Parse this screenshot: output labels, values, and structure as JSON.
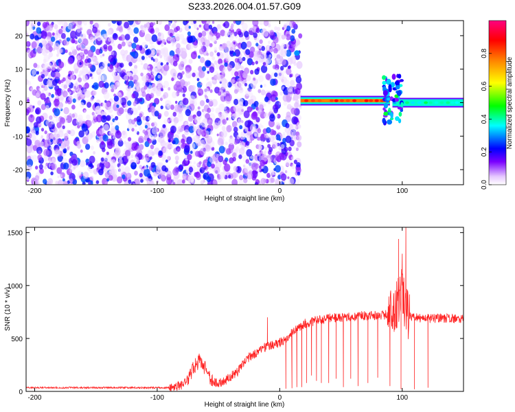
{
  "title": "S233.2026.004.01.57.G09",
  "chart_data": [
    {
      "type": "heatmap",
      "xlabel": "Height of straight line (km)",
      "ylabel": "Frequency (Hz)",
      "xlim": [
        -207,
        150
      ],
      "ylim": [
        -24.5,
        24.5
      ],
      "xticks": [
        -200,
        -100,
        0,
        100
      ],
      "yticks": [
        -20,
        -10,
        0,
        10,
        20
      ],
      "colorbar": {
        "label": "Normalized spectral amplitude",
        "range": [
          0,
          1
        ],
        "ticks": [
          0.0,
          0.2,
          0.4,
          0.6,
          0.8
        ],
        "colors": [
          "#eed6ff",
          "#7a00ff",
          "#0000ff",
          "#00ffff",
          "#00ff00",
          "#ffff00",
          "#ff8000",
          "#ff0000",
          "#ff0080"
        ]
      },
      "features": {
        "noise_region_x": [
          -207,
          17
        ],
        "noise_mean_amplitude": 0.12,
        "carrier_segments": [
          {
            "x": [
              17,
              90
            ],
            "frequency": 0.6,
            "amplitude": 0.9
          },
          {
            "x": [
              92,
              150
            ],
            "frequency": 0.0,
            "amplitude": 0.45
          }
        ],
        "bright_spot": {
          "x": 14,
          "frequency": 14.8,
          "amplitude": 0.3
        },
        "transition": {
          "x": [
            85,
            100
          ],
          "frequency_range": [
            -6,
            8
          ],
          "amplitude": 0.35
        }
      }
    },
    {
      "type": "line",
      "xlabel": "Height of straight line (km)",
      "ylabel": "SNR (10 * v/v)",
      "xlim": [
        -207,
        150
      ],
      "ylim": [
        0,
        1550
      ],
      "xticks": [
        -200,
        -100,
        0,
        100
      ],
      "yticks": [
        0,
        500,
        1000,
        1500
      ],
      "color": "#ff0000",
      "envelope": {
        "x": [
          -207,
          -90,
          -80,
          -75,
          -70,
          -65,
          -60,
          -55,
          -50,
          -45,
          -40,
          -35,
          -30,
          -25,
          -20,
          -15,
          -10,
          -5,
          0,
          5,
          10,
          15,
          20,
          30,
          40,
          50,
          60,
          70,
          80,
          85,
          90,
          95,
          98,
          100,
          102,
          105,
          110,
          120,
          130,
          140,
          150
        ],
        "y": [
          35,
          35,
          60,
          120,
          230,
          300,
          200,
          90,
          70,
          100,
          140,
          180,
          250,
          320,
          360,
          400,
          430,
          440,
          460,
          500,
          550,
          600,
          640,
          670,
          690,
          700,
          710,
          715,
          720,
          720,
          750,
          800,
          900,
          1000,
          800,
          710,
          700,
          690,
          690,
          690,
          690
        ]
      },
      "spikes": [
        {
          "x": 97,
          "y": 1440
        },
        {
          "x": 100,
          "y": 1300
        },
        {
          "x": 103,
          "y": 1580
        },
        {
          "x": -10,
          "y": 700
        }
      ],
      "dropouts": [
        {
          "x": 5,
          "y": 25
        },
        {
          "x": 10,
          "y": 30
        },
        {
          "x": 14,
          "y": 40
        },
        {
          "x": 18,
          "y": 40
        },
        {
          "x": 22,
          "y": 80
        },
        {
          "x": 26,
          "y": 150
        },
        {
          "x": 30,
          "y": 100
        },
        {
          "x": 34,
          "y": 80
        },
        {
          "x": 40,
          "y": 80
        },
        {
          "x": 46,
          "y": 120
        },
        {
          "x": 52,
          "y": 40
        },
        {
          "x": 58,
          "y": 120
        },
        {
          "x": 64,
          "y": 50
        },
        {
          "x": 72,
          "y": 80
        },
        {
          "x": 80,
          "y": 130
        },
        {
          "x": 90,
          "y": 50
        },
        {
          "x": 99,
          "y": 20
        },
        {
          "x": 110,
          "y": 20
        },
        {
          "x": 121,
          "y": 35
        }
      ]
    }
  ]
}
